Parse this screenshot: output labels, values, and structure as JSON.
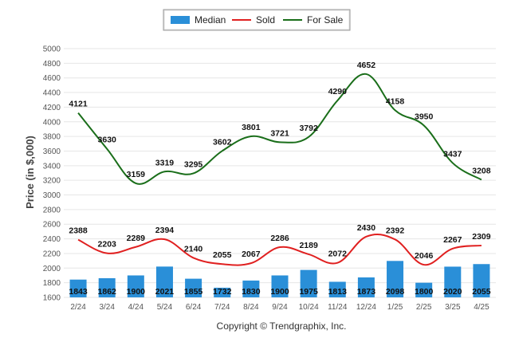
{
  "chart_data": {
    "type": "bar",
    "categories": [
      "2/24",
      "3/24",
      "4/24",
      "5/24",
      "6/24",
      "7/24",
      "8/24",
      "9/24",
      "10/24",
      "11/24",
      "12/24",
      "1/25",
      "2/25",
      "3/25",
      "4/25"
    ],
    "series": [
      {
        "name": "Median",
        "type": "bar",
        "color": "#2a8fd8",
        "values": [
          1843,
          1862,
          1900,
          2021,
          1855,
          1732,
          1830,
          1900,
          1975,
          1813,
          1873,
          2098,
          1800,
          2020,
          2055
        ]
      },
      {
        "name": "Sold",
        "type": "line",
        "color": "#e02020",
        "values": [
          2388,
          2203,
          2289,
          2394,
          2140,
          2055,
          2067,
          2286,
          2189,
          2072,
          2430,
          2392,
          2046,
          2267,
          2309
        ]
      },
      {
        "name": "For Sale",
        "type": "line",
        "color": "#1a6e1a",
        "values": [
          4121,
          3630,
          3159,
          3319,
          3295,
          3602,
          3801,
          3721,
          3792,
          4290,
          4652,
          4158,
          3950,
          3437,
          3208
        ]
      }
    ],
    "ylabel": "Price (in $,000)",
    "ylim": [
      1600,
      5000
    ],
    "yticks": [
      1600,
      1800,
      2000,
      2200,
      2400,
      2600,
      2800,
      3000,
      3200,
      3400,
      3600,
      3800,
      4000,
      4200,
      4400,
      4600,
      4800,
      5000
    ],
    "grid": true,
    "legend_position": "top-center"
  },
  "footer": {
    "copyright": "Copyright © Trendgraphix, Inc."
  }
}
